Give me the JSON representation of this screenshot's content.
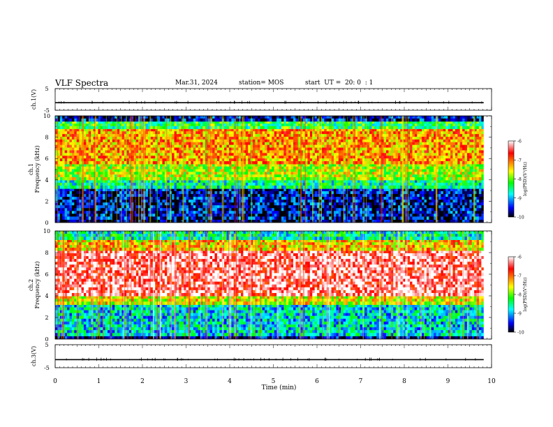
{
  "header": {
    "title": "VLF Spectra",
    "date": "Mar.31, 2024",
    "station": "station= MOS",
    "start_ut": "start  UT =  20: 0  : 1"
  },
  "chart_data": [
    {
      "type": "line",
      "panel": "ch1-waveform",
      "ylabel": "ch.1(V)",
      "ylim": [
        -5,
        5
      ],
      "yticks": [
        "5",
        "-5"
      ],
      "value": -1.5,
      "grid": false
    },
    {
      "type": "heatmap",
      "panel": "ch1-spectrogram",
      "ylabel": "ch.1\nFrequency (kHz)",
      "ylim": [
        0,
        10
      ],
      "yticks": [
        "0",
        "2",
        "4",
        "6",
        "8",
        "10"
      ],
      "bands": [
        {
          "from": 0,
          "to": 0.3,
          "level": -9.8
        },
        {
          "from": 0.3,
          "to": 3.2,
          "level": -9.6
        },
        {
          "from": 3.2,
          "to": 4.0,
          "level": -8.6
        },
        {
          "from": 4.0,
          "to": 5.5,
          "level": -7.8
        },
        {
          "from": 5.5,
          "to": 8.8,
          "level": -7.2
        },
        {
          "from": 8.8,
          "to": 9.5,
          "level": -8.3
        },
        {
          "from": 9.5,
          "to": 10,
          "level": -9.6
        }
      ],
      "colorbar": {
        "label": "log(PSD)(V²/Hz)",
        "ticks": [
          "-6",
          "-7",
          "-8",
          "-9",
          "-10"
        ],
        "range": [
          -10,
          -6
        ]
      }
    },
    {
      "type": "heatmap",
      "panel": "ch2-spectrogram",
      "ylabel": "ch.2\nFrequency (kHz)",
      "ylim": [
        0,
        10
      ],
      "yticks": [
        "0",
        "2",
        "4",
        "6",
        "8",
        "10"
      ],
      "bands": [
        {
          "from": 0,
          "to": 0.3,
          "level": -9.8
        },
        {
          "from": 0.3,
          "to": 3.2,
          "level": -8.8
        },
        {
          "from": 3.2,
          "to": 4.0,
          "level": -7.6
        },
        {
          "from": 4.0,
          "to": 8.2,
          "level": -6.3
        },
        {
          "from": 8.2,
          "to": 9.2,
          "level": -7.4
        },
        {
          "from": 9.2,
          "to": 10,
          "level": -8.6
        }
      ],
      "colorbar": {
        "label": "log(PSD)(V²/Hz)",
        "ticks": [
          "-6",
          "-7",
          "-8",
          "-9",
          "-10"
        ],
        "range": [
          -10,
          -6
        ]
      }
    },
    {
      "type": "line",
      "panel": "ch3-waveform",
      "ylabel": "ch.3(V)",
      "ylim": [
        -5,
        5
      ],
      "yticks": [
        "5",
        "-5"
      ],
      "value": -1.5,
      "grid": false
    }
  ],
  "x_axis": {
    "label": "Time (min)",
    "xlim": [
      0,
      10
    ],
    "data_end": 9.82,
    "ticks": [
      "0",
      "1",
      "2",
      "3",
      "4",
      "5",
      "6",
      "7",
      "8",
      "9",
      "10"
    ]
  },
  "colormap": [
    "#ffffff",
    "#ff0000",
    "#ff8000",
    "#ffff00",
    "#00ff00",
    "#00ffff",
    "#0000ff",
    "#000000"
  ]
}
